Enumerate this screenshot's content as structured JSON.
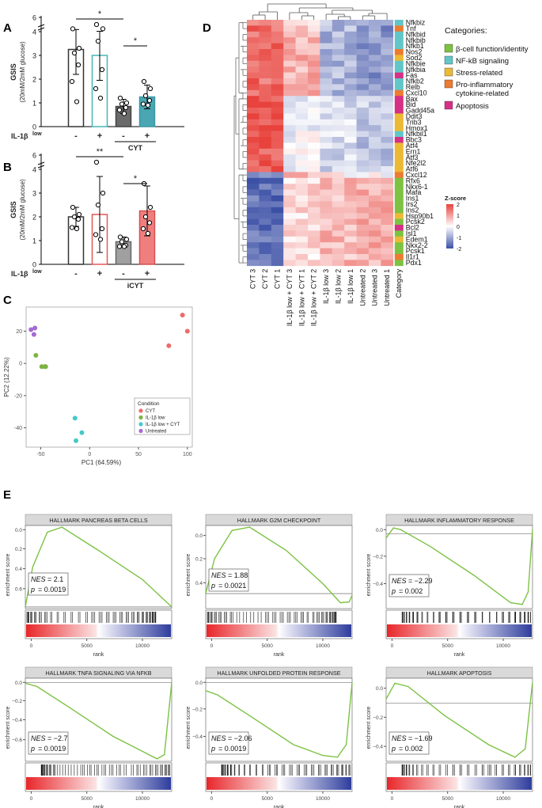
{
  "panels": {
    "A": "A",
    "B": "B",
    "C": "C",
    "D": "D",
    "E": "E"
  },
  "chart_data": [
    {
      "id": "A",
      "type": "bar",
      "ylabel": "GSIS",
      "ylabel2": "(20mM/2mM glucose)",
      "y_ticks": [
        "0",
        "1",
        "2",
        "3",
        "4",
        "6"
      ],
      "x_row_label": "IL-1β",
      "x_row_label_sup": "low",
      "categories": [
        "-",
        "+",
        "-",
        "+"
      ],
      "group_label": "CYT",
      "values": [
        3.25,
        3.0,
        0.85,
        1.25
      ],
      "errors": [
        1.05,
        1.05,
        0.3,
        0.5
      ],
      "colors": [
        "#ffffff",
        "#ffffff",
        "#6a6a6a",
        "#4aa6b3"
      ],
      "edges": [
        "#333333",
        "#48b5b5",
        "#444444",
        "#3d98a4"
      ],
      "points": [
        [
          4.4,
          3.3,
          3.1,
          2.6,
          1.9,
          1.05
        ],
        [
          5.0,
          4.4,
          3.6,
          2.4,
          1.6,
          1.2
        ],
        [
          1.2,
          1.0,
          0.95,
          0.8,
          0.7,
          0.55
        ],
        [
          1.9,
          1.6,
          1.3,
          1.1,
          0.95,
          0.9
        ]
      ],
      "sig": [
        {
          "label": "*",
          "from": 0,
          "to": 2
        },
        {
          "label": "*",
          "from": 2,
          "to": 3
        }
      ]
    },
    {
      "id": "B",
      "type": "bar",
      "ylabel": "GSIS",
      "ylabel2": "(20mM/2mM glucose)",
      "y_ticks": [
        "0",
        "1",
        "2",
        "3",
        "4",
        "6"
      ],
      "x_row_label": "IL-1β",
      "x_row_label_sup": "low",
      "categories": [
        "-",
        "+",
        "-",
        "+"
      ],
      "group_label": "iCYT",
      "values": [
        2.0,
        2.1,
        0.95,
        2.25
      ],
      "errors": [
        0.4,
        1.6,
        0.2,
        1.05
      ],
      "colors": [
        "#ffffff",
        "#ffffff",
        "#a0a0a0",
        "#ef7f7f"
      ],
      "edges": [
        "#333333",
        "#e55757",
        "#666666",
        "#d95050"
      ],
      "points": [
        [
          2.4,
          2.1,
          2.0,
          1.9,
          1.55,
          1.5
        ],
        [
          5.0,
          3.0,
          2.5,
          1.5,
          1.25,
          1.05
        ],
        [
          1.15,
          1.05,
          0.95,
          0.8,
          0.75,
          0.75
        ],
        [
          3.4,
          2.4,
          2.0,
          1.75,
          1.5,
          1.3
        ]
      ],
      "sig": [
        {
          "label": "**",
          "from": 0,
          "to": 2
        },
        {
          "label": "*",
          "from": 2,
          "to": 3
        }
      ]
    },
    {
      "id": "C",
      "type": "scatter",
      "xlabel": "PC1 (64.59%)",
      "ylabel": "PC2 (12.22%)",
      "x_ticks": [
        -50,
        0,
        50,
        100
      ],
      "y_ticks": [
        -40,
        -20,
        0,
        20
      ],
      "xlim": [
        -65,
        105
      ],
      "ylim": [
        -52,
        35
      ],
      "legend_title": "Condition",
      "series": [
        {
          "name": "CYT",
          "color": "#ee6b6b",
          "x": [
            95,
            100,
            81
          ],
          "y": [
            30,
            20,
            11
          ]
        },
        {
          "name": "IL-1β low",
          "color": "#7cb342",
          "x": [
            -55,
            -49,
            -46,
            -45
          ],
          "y": [
            5,
            -2,
            -2,
            -2
          ]
        },
        {
          "name": "IL-1β low + CYT",
          "color": "#45c9c9",
          "x": [
            -15,
            -14,
            -8
          ],
          "y": [
            -34,
            -48,
            -43
          ]
        },
        {
          "name": "Untreated",
          "color": "#a46ad4",
          "x": [
            -60,
            -57,
            -56
          ],
          "y": [
            21,
            18,
            22
          ]
        }
      ]
    },
    {
      "id": "D",
      "type": "heatmap",
      "genes": [
        "Nfkbiz",
        "Tnf",
        "Nfkbid",
        "Nfkbib",
        "Nfkb1",
        "Nos2",
        "Sod2",
        "Nfkbie",
        "Nfkbia",
        "Fas",
        "Nfkb2",
        "Relb",
        "Cxcl10",
        "Bax",
        "Bid",
        "Gadd45a",
        "Ddit3",
        "Trib3",
        "Hmox1",
        "Nfkbil1",
        "Bbc3",
        "Atf4",
        "Ern1",
        "Atf3",
        "Nfe2l2",
        "Atf6",
        "Cxcl12",
        "Rfx6",
        "Nkx6-1",
        "Mafa",
        "Ins1",
        "Irs2",
        "Ins2",
        "Hsp90b1",
        "Pcsk2",
        "Bcl2",
        "Isl1",
        "Edem1",
        "Nkx2-2",
        "Pcsk1",
        "Il1r1",
        "Pdx1"
      ],
      "gene_category": [
        1,
        3,
        1,
        1,
        1,
        3,
        2,
        1,
        1,
        4,
        1,
        1,
        3,
        4,
        4,
        4,
        2,
        2,
        2,
        1,
        4,
        2,
        2,
        2,
        2,
        2,
        3,
        0,
        0,
        0,
        0,
        0,
        0,
        2,
        0,
        4,
        0,
        2,
        0,
        0,
        3,
        0
      ],
      "samples": [
        "CYT 3",
        "CYT 2",
        "CYT 1",
        "IL-1β low + CYT 3",
        "IL-1β low + CYT 1",
        "IL-1β low + CYT 2",
        "IL-1β low 3",
        "IL-1β low 2",
        "IL-1β low 1",
        "Untreated 2",
        "Untreated 3",
        "Untreated 1"
      ],
      "category_column_label": "Category",
      "legend_title": "Categories:",
      "categories": [
        "β-cell function/identity",
        "NF-kB signaling",
        "Stress-related",
        "Pro-inflammatory cytokine-related",
        "Apoptosis"
      ],
      "category_colors": [
        "#7dc242",
        "#62c6c8",
        "#ecb934",
        "#ed7b31",
        "#d62f86"
      ],
      "colorbar_title": "Z-score",
      "colorbar_ticks": [
        "2",
        "1",
        "0",
        "-1",
        "-2"
      ]
    },
    {
      "id": "E",
      "type": "line",
      "xlabel": "rank",
      "ylabel": "enrichment score",
      "x_ticks": [
        "0",
        "5000",
        "10000"
      ],
      "plots": [
        {
          "title": "HALLMARK PANCREAS BETA CELLS",
          "nes": "2.1",
          "p": "0.0019",
          "y_ticks": [
            "0.0",
            "0.2",
            "0.4",
            "0.6"
          ]
        },
        {
          "title": "HALLMARK G2M CHECKPOINT",
          "nes": "1.88",
          "p": "0.0021",
          "y_ticks": [
            "0.0",
            "0.2",
            "0.4"
          ]
        },
        {
          "title": "HALLMARK INFLAMMATORY RESPONSE",
          "nes": "−2.29",
          "p": "0.002",
          "y_ticks": [
            "0.0",
            "−0.2",
            "−0.4"
          ]
        },
        {
          "title": "HALLMARK TNFA SIGNALING VIA NFKB",
          "nes": "−2.7",
          "p": "0.0019",
          "y_ticks": [
            "0.0",
            "−0.2",
            "−0.4",
            "−0.6"
          ]
        },
        {
          "title": "HALLMARK UNFOLDED PROTEIN RESPONSE",
          "nes": "−2.06",
          "p": "0.0019",
          "y_ticks": [
            "0.0",
            "−0.2",
            "−0.4"
          ]
        },
        {
          "title": "HALLMARK APOPTOSIS",
          "nes": "−1.69",
          "p": "0.002",
          "y_ticks": [
            "0.0",
            "−0.2",
            "−0.4"
          ]
        }
      ]
    }
  ]
}
